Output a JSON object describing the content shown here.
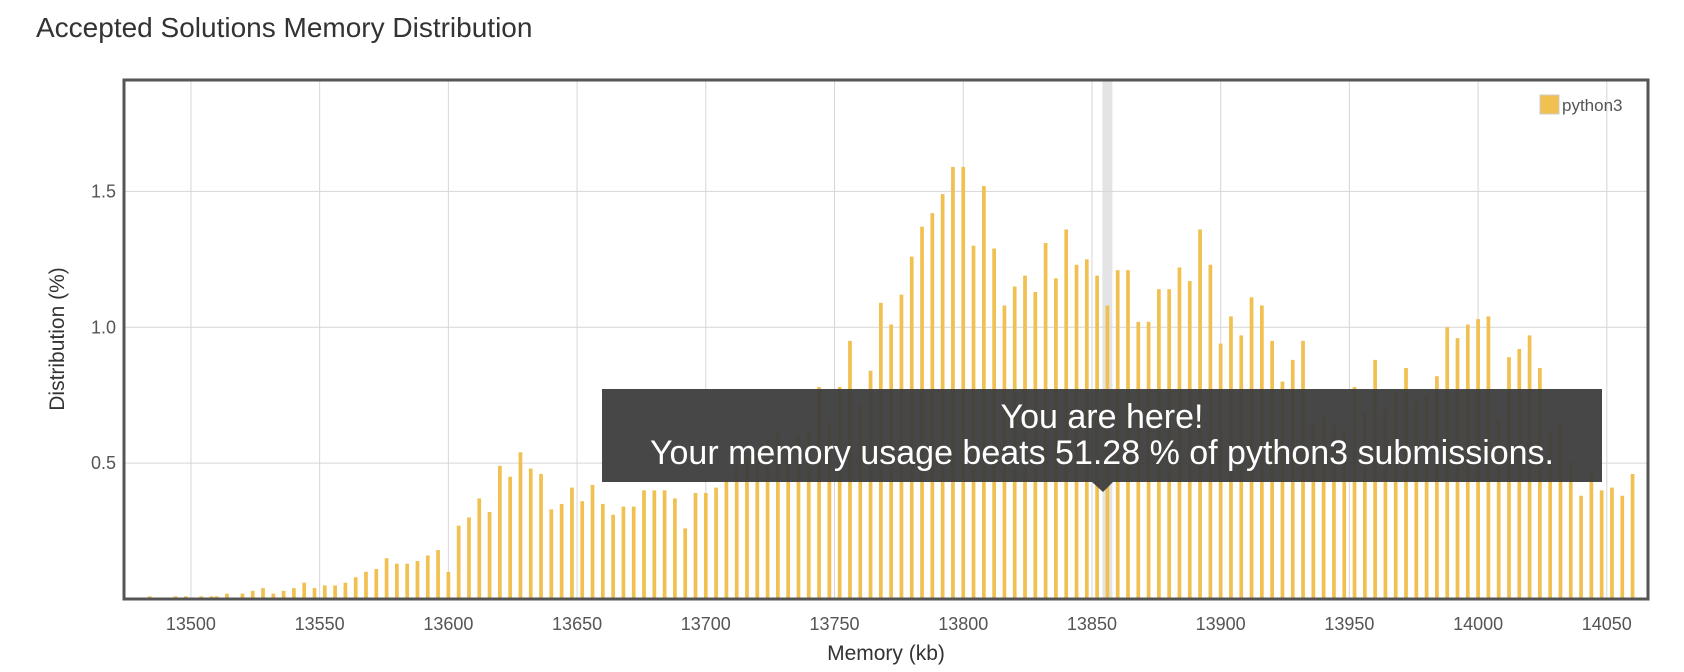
{
  "page": {
    "title": "Accepted Solutions Memory Distribution"
  },
  "colors": {
    "bar": "#f0c050",
    "bar_stroke": "#e9b641",
    "grid": "#d6d6d6",
    "frame": "#555555",
    "tooltip_bg": "#3c3c3c",
    "highlight": "#e4e4e4"
  },
  "tooltip": {
    "line1": "You are here!",
    "line2": "Your memory usage beats 51.28 % of python3 submissions.",
    "highlight_x": 13856
  },
  "chart_data": {
    "type": "bar",
    "xlabel": "Memory (kb)",
    "ylabel": "Distribution (%)",
    "xlim": [
      13474,
      14066
    ],
    "ylim": [
      0,
      1.91
    ],
    "x_ticks": [
      13500,
      13550,
      13600,
      13650,
      13700,
      13750,
      13800,
      13850,
      13900,
      13950,
      14000,
      14050
    ],
    "y_ticks": [
      0.5,
      1.0,
      1.5
    ],
    "y_tick_labels": [
      "0.5",
      "1.0",
      "1.5"
    ],
    "grid": true,
    "legend_position": "top-right",
    "series": [
      {
        "name": "python3",
        "bin_width": 2,
        "x": [
          13484,
          13494,
          13498,
          13504,
          13508,
          13510,
          13514,
          13520,
          13524,
          13528,
          13532,
          13536,
          13540,
          13544,
          13548,
          13552,
          13556,
          13560,
          13564,
          13568,
          13572,
          13576,
          13580,
          13584,
          13588,
          13592,
          13596,
          13600,
          13604,
          13608,
          13612,
          13616,
          13620,
          13624,
          13628,
          13632,
          13636,
          13640,
          13644,
          13648,
          13652,
          13656,
          13660,
          13664,
          13668,
          13672,
          13676,
          13680,
          13684,
          13688,
          13692,
          13696,
          13700,
          13704,
          13708,
          13712,
          13716,
          13720,
          13724,
          13728,
          13732,
          13736,
          13740,
          13744,
          13748,
          13752,
          13756,
          13760,
          13764,
          13768,
          13772,
          13776,
          13780,
          13784,
          13788,
          13792,
          13796,
          13800,
          13804,
          13808,
          13812,
          13816,
          13820,
          13824,
          13828,
          13832,
          13836,
          13840,
          13844,
          13848,
          13852,
          13856,
          13860,
          13864,
          13868,
          13872,
          13876,
          13880,
          13884,
          13888,
          13892,
          13896,
          13900,
          13904,
          13908,
          13912,
          13916,
          13920,
          13924,
          13928,
          13932,
          13936,
          13940,
          13944,
          13948,
          13952,
          13956,
          13960,
          13964,
          13968,
          13972,
          13976,
          13980,
          13984,
          13988,
          13992,
          13996,
          14000,
          14004,
          14008,
          14012,
          14016,
          14020,
          14024,
          14028,
          14032,
          14036,
          14040,
          14044,
          14048,
          14052,
          14056,
          14060
        ],
        "values": [
          0.01,
          0.01,
          0.01,
          0.01,
          0.01,
          0.01,
          0.02,
          0.02,
          0.03,
          0.04,
          0.02,
          0.03,
          0.04,
          0.06,
          0.04,
          0.05,
          0.05,
          0.06,
          0.08,
          0.1,
          0.11,
          0.15,
          0.13,
          0.13,
          0.14,
          0.16,
          0.18,
          0.1,
          0.27,
          0.3,
          0.37,
          0.32,
          0.49,
          0.45,
          0.54,
          0.48,
          0.46,
          0.33,
          0.35,
          0.41,
          0.36,
          0.42,
          0.35,
          0.31,
          0.34,
          0.34,
          0.4,
          0.4,
          0.4,
          0.37,
          0.26,
          0.39,
          0.39,
          0.41,
          0.44,
          0.49,
          0.52,
          0.55,
          0.59,
          0.62,
          0.54,
          0.6,
          0.62,
          0.78,
          0.65,
          0.78,
          0.95,
          0.71,
          0.84,
          1.09,
          1.01,
          1.12,
          1.26,
          1.37,
          1.42,
          1.49,
          1.59,
          1.59,
          1.3,
          1.52,
          1.29,
          1.08,
          1.15,
          1.19,
          1.13,
          1.31,
          1.18,
          1.36,
          1.23,
          1.25,
          1.19,
          1.08,
          1.21,
          1.21,
          1.02,
          1.02,
          1.14,
          1.14,
          1.22,
          1.17,
          1.36,
          1.23,
          0.94,
          1.04,
          0.97,
          1.11,
          1.08,
          0.95,
          0.8,
          0.88,
          0.95,
          0.65,
          0.67,
          0.64,
          0.62,
          0.78,
          0.69,
          0.88,
          0.7,
          0.76,
          0.85,
          0.73,
          0.75,
          0.82,
          1.0,
          0.96,
          1.01,
          1.03,
          1.04,
          0.66,
          0.89,
          0.92,
          0.97,
          0.85,
          0.62,
          0.65,
          0.5,
          0.38,
          0.46,
          0.4,
          0.41,
          0.38,
          0.46
        ]
      }
    ]
  }
}
